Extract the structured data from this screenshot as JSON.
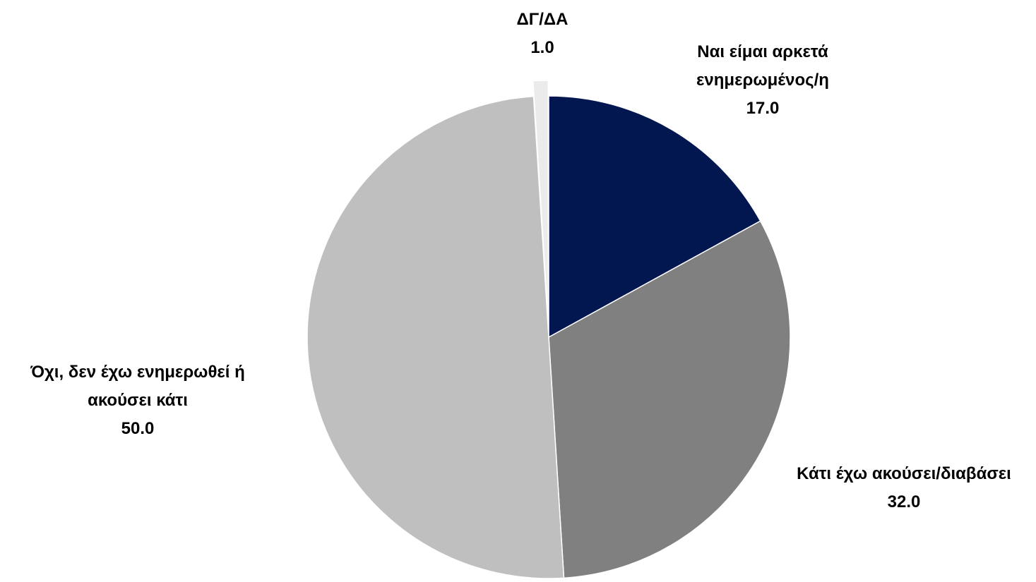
{
  "chart_data": {
    "type": "pie",
    "categories": [
      "Ναι είμαι αρκετά ενημερωμένος/η",
      "Κάτι έχω ακούσει/διαβάσει",
      "Όχι, δεν έχω ενημερωθεί ή ακούσει κάτι",
      "ΔΓ/ΔΑ"
    ],
    "values": [
      17,
      32,
      50,
      1
    ],
    "value_labels": [
      "17.0",
      "32.0",
      "50.0",
      "1.0"
    ],
    "colors": [
      "#021650",
      "#808080",
      "#bfbfbf",
      "#ebebeb"
    ]
  }
}
